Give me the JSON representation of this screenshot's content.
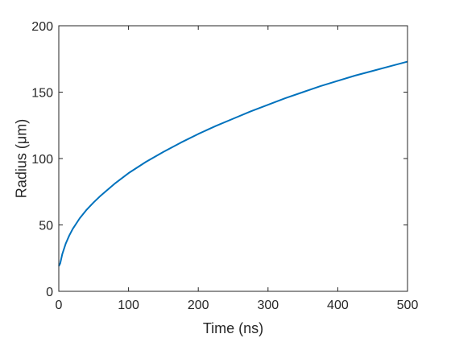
{
  "chart_data": {
    "type": "line",
    "title": "",
    "xlabel": "Time (ns)",
    "ylabel": "Radius (μm)",
    "xlim": [
      0,
      500
    ],
    "ylim": [
      0,
      200
    ],
    "xticks": [
      0,
      100,
      200,
      300,
      400,
      500
    ],
    "xtick_labels": [
      "0",
      "100",
      "200",
      "300",
      "400",
      "500"
    ],
    "yticks": [
      0,
      50,
      100,
      150,
      200
    ],
    "ytick_labels": [
      "0",
      "50",
      "100",
      "150",
      "200"
    ],
    "grid": false,
    "box": true,
    "colors": {
      "series": "#0072BD",
      "axes": "#262626"
    },
    "series": [
      {
        "x": [
          0,
          2,
          5,
          10,
          15,
          20,
          30,
          40,
          50,
          60,
          80,
          100,
          125,
          150,
          175,
          200,
          225,
          250,
          275,
          300,
          325,
          350,
          375,
          400,
          425,
          450,
          475,
          500
        ],
        "y": [
          19,
          21,
          28,
          36,
          42,
          47,
          55,
          61.5,
          67,
          72,
          81,
          89,
          97.5,
          105,
          112,
          118.5,
          124.5,
          130,
          135.5,
          140.5,
          145.5,
          150,
          154.5,
          158.5,
          162.5,
          166,
          169.5,
          173
        ]
      }
    ]
  }
}
